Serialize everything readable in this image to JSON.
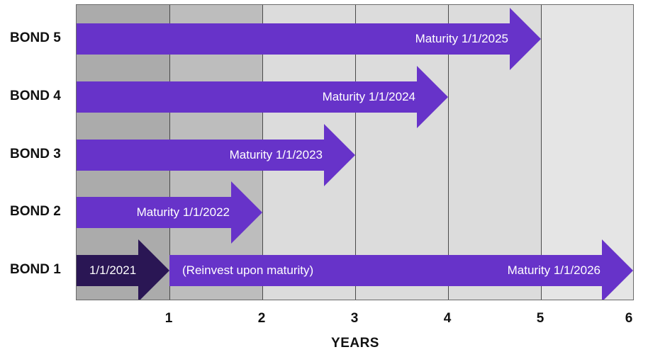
{
  "colors": {
    "arrow": "#6733c9",
    "arrow_initial": "#2a1654",
    "band_dark": "#ababab",
    "band_medium": "#bdbdbd",
    "band_light": "#dcdcdc",
    "band_lightest": "#e5e5e5",
    "gridline": "#4a4a4a"
  },
  "axis": {
    "title": "YEARS",
    "ticks": [
      "1",
      "2",
      "3",
      "4",
      "5",
      "6"
    ]
  },
  "rows": [
    {
      "label": "BOND 5",
      "arrows": [
        {
          "start_year": 0,
          "end_year": 5,
          "text": "Maturity 1/1/2025",
          "text_align": "end",
          "tone": "arrow"
        }
      ]
    },
    {
      "label": "BOND 4",
      "arrows": [
        {
          "start_year": 0,
          "end_year": 4,
          "text": "Maturity 1/1/2024",
          "text_align": "end",
          "tone": "arrow"
        }
      ]
    },
    {
      "label": "BOND 3",
      "arrows": [
        {
          "start_year": 0,
          "end_year": 3,
          "text": "Maturity 1/1/2023",
          "text_align": "end",
          "tone": "arrow"
        }
      ]
    },
    {
      "label": "BOND 2",
      "arrows": [
        {
          "start_year": 0,
          "end_year": 2,
          "text": "Maturity 1/1/2022",
          "text_align": "end",
          "tone": "arrow"
        }
      ]
    },
    {
      "label": "BOND 1",
      "arrows": [
        {
          "start_year": 0,
          "end_year": 1,
          "text": "1/1/2021",
          "text_align": "start",
          "tone": "arrow_initial"
        },
        {
          "start_year": 1,
          "end_year": 6,
          "text": "(Reinvest upon maturity)",
          "text_align": "start",
          "tone": "arrow",
          "text2": "Maturity 1/1/2026"
        }
      ]
    }
  ]
}
